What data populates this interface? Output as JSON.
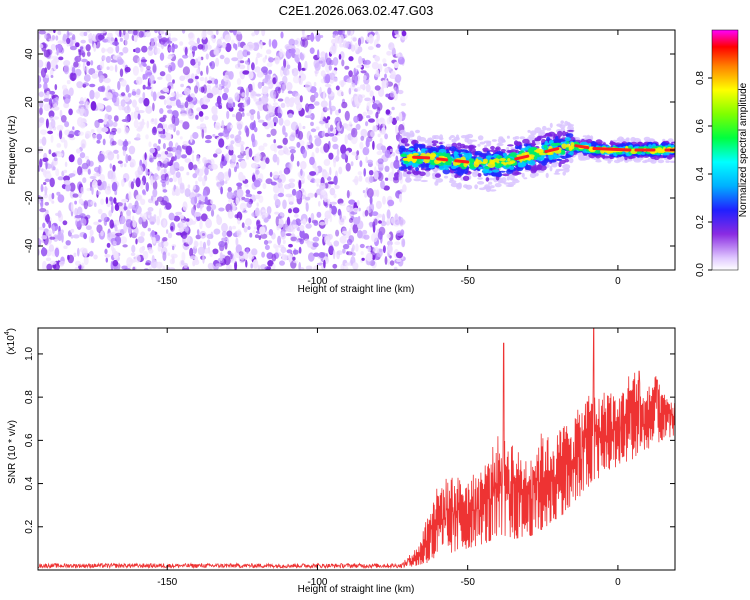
{
  "chart_data": [
    {
      "type": "heatmap",
      "title": "C2E1.2026.063.02.47.G03",
      "xlabel": "Height of straight line (km)",
      "ylabel": "Frequency (Hz)",
      "xlim": [
        -193,
        19
      ],
      "ylim": [
        -50,
        50
      ],
      "x_ticks": [
        -150,
        -100,
        -50,
        0
      ],
      "x_tick_labels": [
        "-150",
        "-100",
        "-50",
        "0"
      ],
      "y_ticks": [
        -40,
        -20,
        0,
        20,
        40
      ],
      "y_tick_labels": [
        "-40",
        "-20",
        "0",
        "20",
        "40"
      ],
      "noise_region_x": [
        -193,
        -72
      ],
      "signal_trace": {
        "x": [
          -72,
          -65,
          -58,
          -50,
          -42,
          -35,
          -28,
          -22,
          -15,
          -10,
          -5,
          0,
          5,
          10,
          15,
          19
        ],
        "freq": [
          -3,
          -3,
          -4,
          -5,
          -6,
          -4,
          -2,
          0,
          2,
          1,
          0,
          0,
          0,
          0,
          0,
          0
        ]
      },
      "colorbar": {
        "label": "Normalized spectral amplitude",
        "range": [
          0,
          1
        ],
        "ticks": [
          0.0,
          0.2,
          0.4,
          0.6,
          0.8
        ],
        "tick_labels": [
          "0.0",
          "0.2",
          "0.4",
          "0.6",
          "0.8"
        ]
      }
    },
    {
      "type": "line",
      "xlabel": "Height of straight line (km)",
      "ylabel": "SNR (10 * v/v)",
      "y_scale_label": "(x10",
      "y_scale_exp": "4",
      "xlim": [
        -193,
        19
      ],
      "ylim": [
        0,
        1.12
      ],
      "x_ticks": [
        -150,
        -100,
        -50,
        0
      ],
      "x_tick_labels": [
        "-150",
        "-100",
        "-50",
        "0"
      ],
      "y_ticks": [
        0.2,
        0.4,
        0.6,
        0.8,
        1.0
      ],
      "y_tick_labels": [
        "0.2",
        "0.4",
        "0.6",
        "0.8",
        "1.0"
      ],
      "series": [
        {
          "name": "SNR",
          "color": "#ee3333",
          "envelope_x": [
            -193,
            -150,
            -100,
            -72,
            -66,
            -62,
            -58,
            -55,
            -50,
            -45,
            -40,
            -38,
            -35,
            -32,
            -28,
            -25,
            -22,
            -18,
            -15,
            -12,
            -9,
            -6,
            -3,
            0,
            3,
            6,
            9,
            12,
            15,
            19
          ],
          "envelope_low": [
            0.01,
            0.01,
            0.01,
            0.01,
            0.02,
            0.04,
            0.06,
            0.08,
            0.1,
            0.12,
            0.14,
            0.14,
            0.14,
            0.15,
            0.16,
            0.18,
            0.22,
            0.26,
            0.3,
            0.34,
            0.4,
            0.42,
            0.46,
            0.48,
            0.5,
            0.52,
            0.55,
            0.58,
            0.6,
            0.62
          ],
          "envelope_high": [
            0.03,
            0.03,
            0.03,
            0.03,
            0.12,
            0.35,
            0.42,
            0.44,
            0.42,
            0.48,
            0.62,
            0.64,
            0.6,
            0.52,
            0.56,
            0.65,
            0.6,
            0.68,
            0.72,
            0.76,
            0.84,
            0.8,
            0.86,
            0.78,
            0.9,
            0.95,
            0.8,
            0.92,
            0.82,
            0.78
          ],
          "peaks": [
            {
              "x": -38,
              "y": 1.05
            },
            {
              "x": -8,
              "y": 1.12
            },
            {
              "x": 7,
              "y": 0.92
            },
            {
              "x": 13,
              "y": 0.88
            }
          ]
        }
      ]
    }
  ]
}
